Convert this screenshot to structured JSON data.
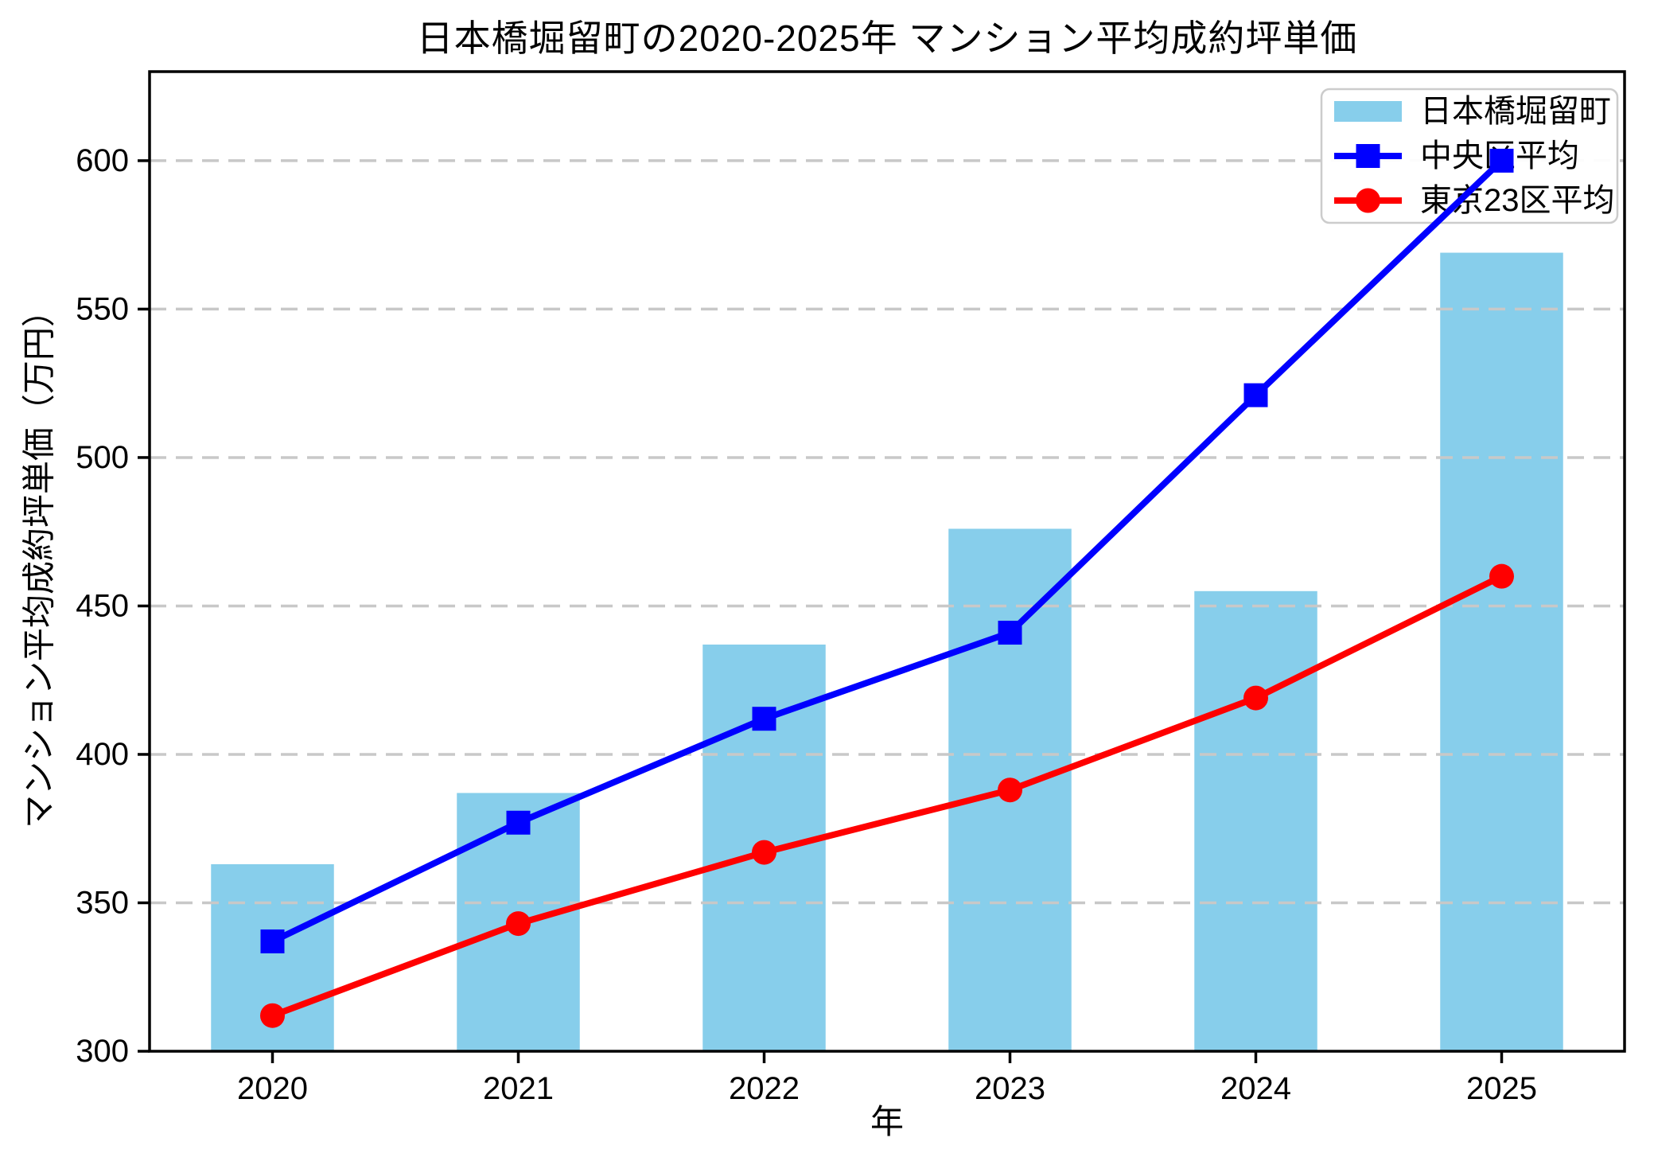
{
  "figure": {
    "title": "日本橋堀留町の2020-2025年 マンション平均成約坪単価",
    "xlabel": "年",
    "ylabel": "マンション平均成約坪単価（万円）"
  },
  "legend": {
    "position": "upper right",
    "items": [
      {
        "label": "日本橋堀留町",
        "swatch": "bar",
        "color": "#87CEEB"
      },
      {
        "label": "中央区平均",
        "swatch": "line-square",
        "color": "#0000FF"
      },
      {
        "label": "東京23区平均",
        "swatch": "line-circle",
        "color": "#FF0000"
      }
    ]
  },
  "chart_data": {
    "type": "bar",
    "title": "日本橋堀留町の2020-2025年 マンション平均成約坪単価",
    "xlabel": "年",
    "ylabel": "マンション平均成約坪単価（万円）",
    "categories": [
      "2020",
      "2021",
      "2022",
      "2023",
      "2024",
      "2025"
    ],
    "series": [
      {
        "name": "日本橋堀留町",
        "type": "bar",
        "marker": "none",
        "color": "#87CEEB",
        "values": [
          363,
          387,
          437,
          476,
          455,
          569
        ]
      },
      {
        "name": "中央区平均",
        "type": "line",
        "marker": "square",
        "color": "#0000FF",
        "values": [
          337,
          377,
          412,
          441,
          521,
          600
        ]
      },
      {
        "name": "東京23区平均",
        "type": "line",
        "marker": "circle",
        "color": "#FF0000",
        "values": [
          312,
          343,
          367,
          388,
          419,
          460
        ]
      }
    ],
    "ylim": [
      300,
      630
    ],
    "yticks": [
      300,
      350,
      400,
      450,
      500,
      550,
      600
    ],
    "grid": "horizontal-dashed",
    "grid_color": "#C8C8C8",
    "axis_color": "#000000",
    "legend_position": "upper right"
  }
}
